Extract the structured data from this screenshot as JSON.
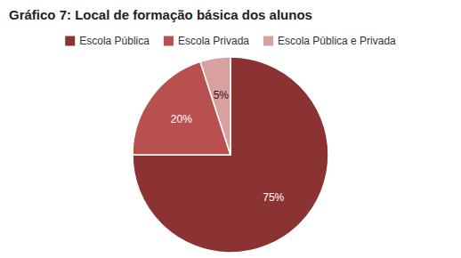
{
  "chart_data": {
    "type": "pie",
    "title": "Gráfico 7: Local de formação básica dos alunos",
    "categories": [
      "Escola Pública",
      "Escola Privada",
      "Escola Pública e Privada"
    ],
    "values": [
      75,
      20,
      5
    ],
    "value_labels": [
      "75%",
      "20%",
      "5%"
    ],
    "colors": [
      "#8B3232",
      "#B85050",
      "#D9A0A0"
    ],
    "data_labels": true,
    "legend": "top"
  }
}
